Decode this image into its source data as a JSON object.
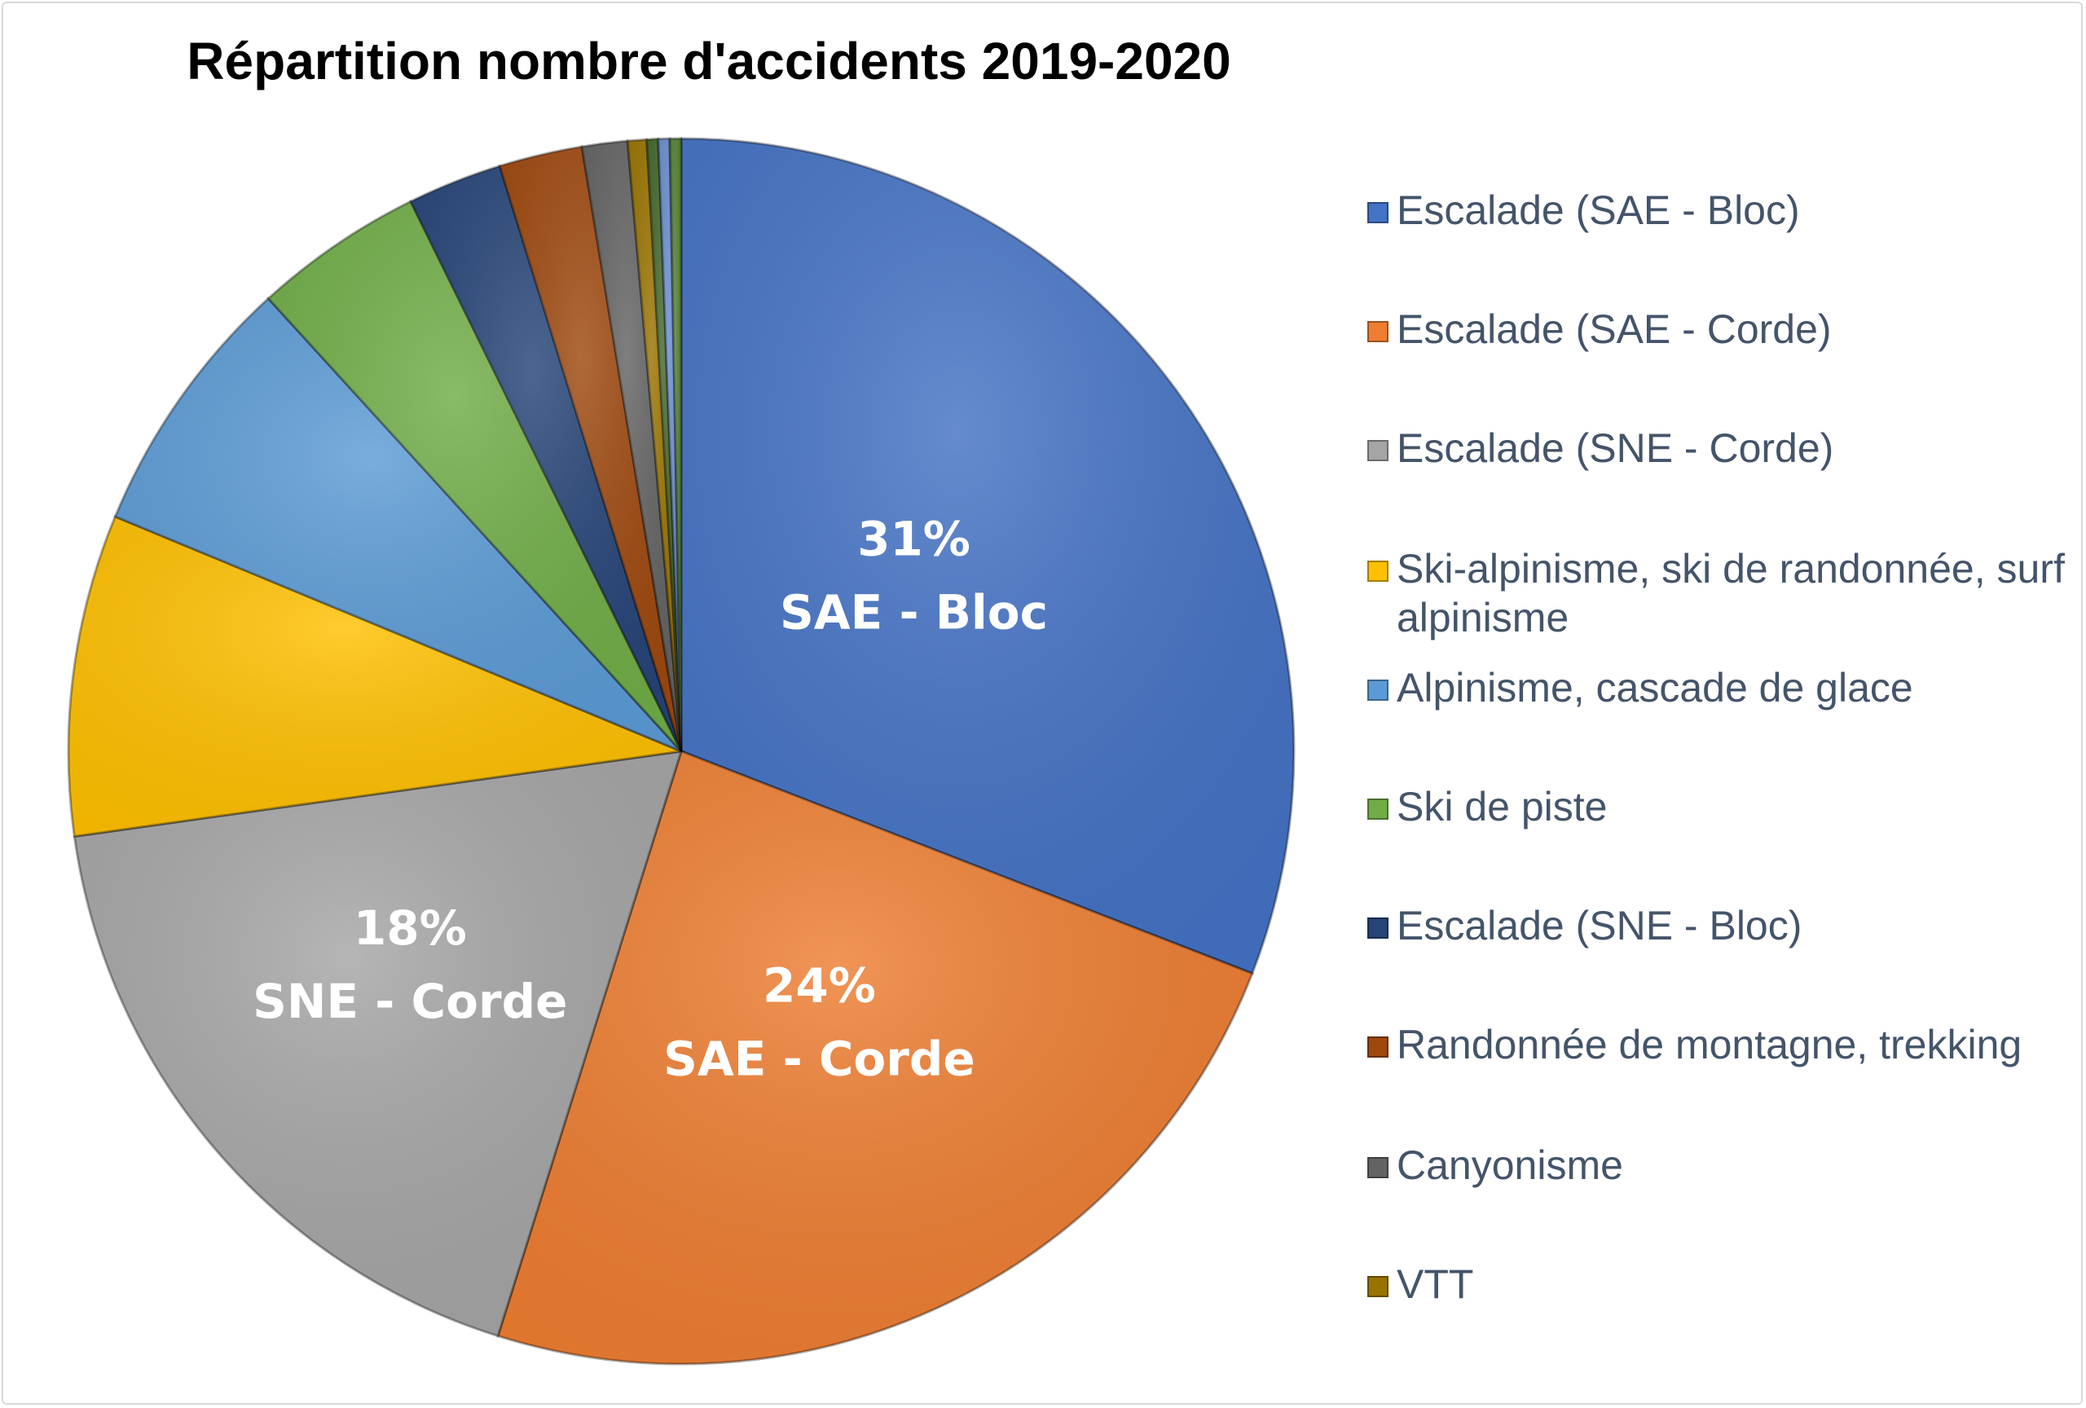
{
  "chart_data": {
    "type": "pie",
    "title": "Répartition nombre d'accidents 2019-2020",
    "legend_position": "right",
    "slices": [
      {
        "name": "Escalade (SAE - Bloc)",
        "value": 31,
        "label_pct": "31%",
        "label_name": "SAE - Bloc",
        "color": "#4472c4",
        "label_color": "#ffffff"
      },
      {
        "name": "Escalade (SAE - Corde)",
        "value": 24,
        "label_pct": "24%",
        "label_name": "SAE - Corde",
        "color": "#ed7d31",
        "label_color": "#ffffff"
      },
      {
        "name": "Escalade (SNE - Corde)",
        "value": 18,
        "label_pct": "18%",
        "label_name": "SNE - Corde",
        "color": "#a5a5a5",
        "label_color": "#ffffff"
      },
      {
        "name": "Ski-alpinisme, ski de randonnée, surf alpinisme",
        "value": 8.5,
        "color": "#ffc000"
      },
      {
        "name": "Alpinisme, cascade de glace",
        "value": 7,
        "color": "#5b9bd5"
      },
      {
        "name": "Ski de piste",
        "value": 4.5,
        "color": "#70ad47"
      },
      {
        "name": "Escalade (SNE - Bloc)",
        "value": 2.5,
        "color": "#264478"
      },
      {
        "name": "Randonnée de montagne, trekking",
        "value": 2.2,
        "color": "#9e480e"
      },
      {
        "name": "Canyonisme",
        "value": 1.2,
        "color": "#636363"
      },
      {
        "name": "VTT",
        "value": 0.5,
        "color": "#997300"
      },
      {
        "name": "",
        "value": 0.3,
        "color": "#43682b"
      },
      {
        "name": "",
        "value": 0.3,
        "color": "#698ed0"
      },
      {
        "name": "",
        "value": 0.3,
        "color": "#548235"
      }
    ]
  }
}
